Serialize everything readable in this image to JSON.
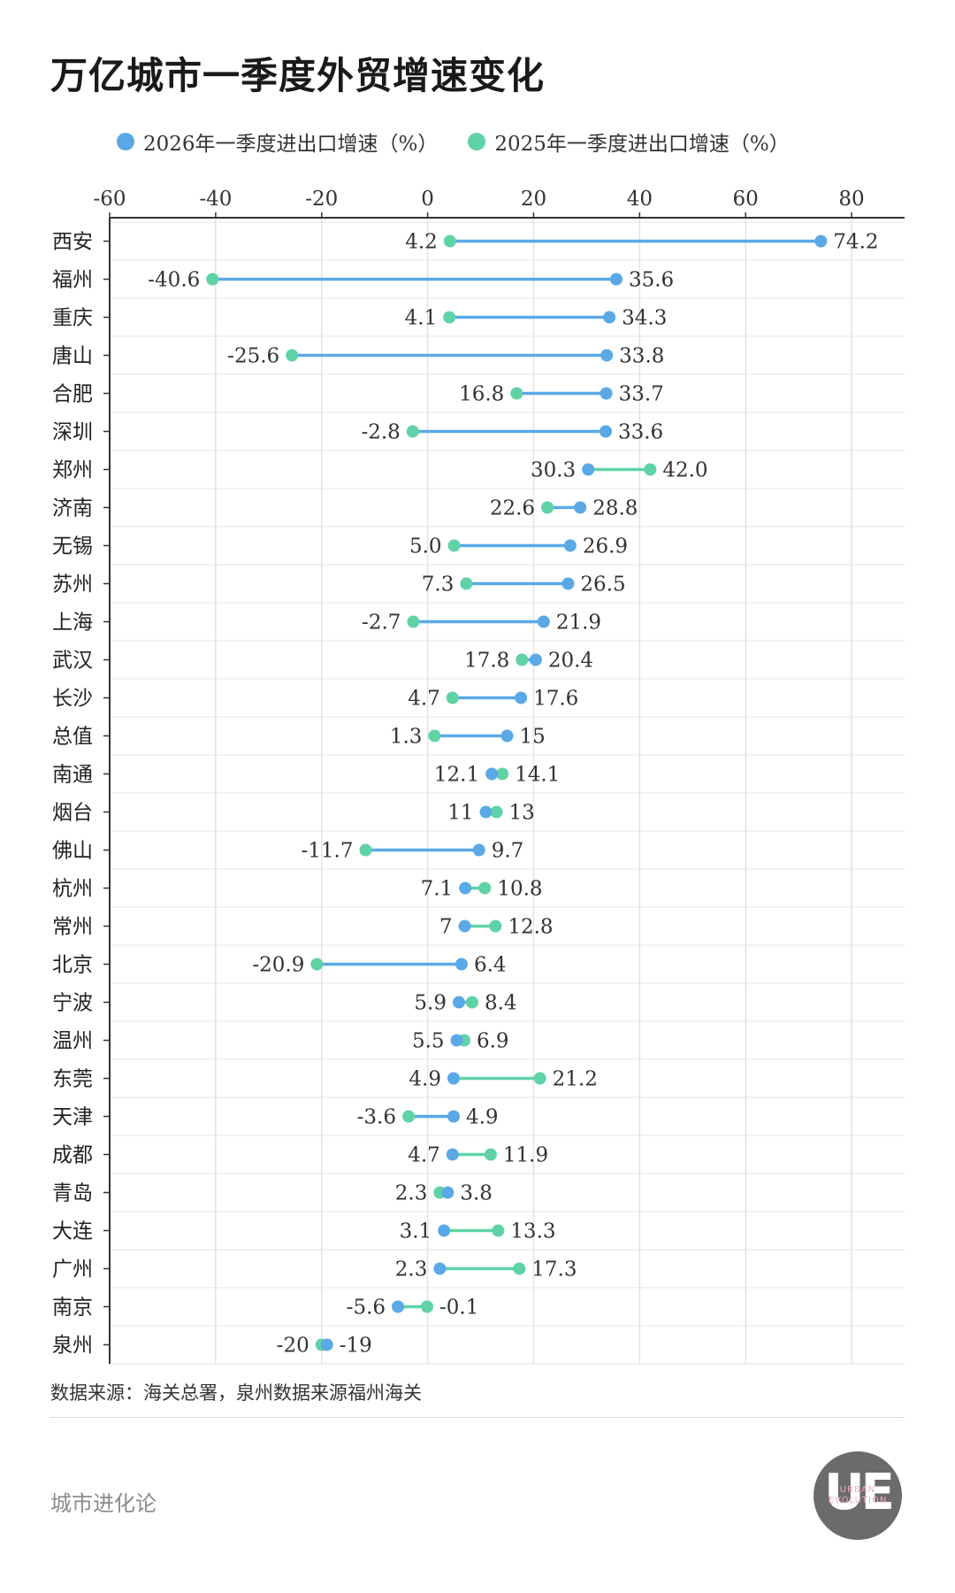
{
  "title": "万亿城市一季度外贸增速变化",
  "legend": [
    {
      "label": "2026年一季度进出口增速（%）",
      "color": "#5aa9e6"
    },
    {
      "label": "2025年一季度进出口增速（%）",
      "color": "#5fd3a6"
    }
  ],
  "chart_data": {
    "type": "dumbbell",
    "title": "万亿城市一季度外贸增速变化",
    "xlim": [
      -60,
      90
    ],
    "xticks": [
      -60,
      -40,
      -20,
      0,
      20,
      40,
      60,
      80
    ],
    "tick_labels": [
      "-60",
      "-40",
      "-20",
      "0",
      "20",
      "40",
      "60",
      "80"
    ],
    "grid": true,
    "series_colors": {
      "2026": "#5aa9e6",
      "2025": "#5fd3a6",
      "connector": "#5aa9e6"
    },
    "rows": [
      {
        "city": "西安",
        "v2026": 74.2,
        "v2025": 4.2,
        "l2026": "74.2",
        "l2025": "4.2",
        "line": "blue"
      },
      {
        "city": "福州",
        "v2026": 35.6,
        "v2025": -40.6,
        "l2026": "35.6",
        "l2025": "-40.6",
        "line": "blue"
      },
      {
        "city": "重庆",
        "v2026": 34.3,
        "v2025": 4.1,
        "l2026": "34.3",
        "l2025": "4.1",
        "line": "blue"
      },
      {
        "city": "唐山",
        "v2026": 33.8,
        "v2025": -25.6,
        "l2026": "33.8",
        "l2025": "-25.6",
        "line": "blue"
      },
      {
        "city": "合肥",
        "v2026": 33.7,
        "v2025": 16.8,
        "l2026": "33.7",
        "l2025": "16.8",
        "line": "blue"
      },
      {
        "city": "深圳",
        "v2026": 33.6,
        "v2025": -2.8,
        "l2026": "33.6",
        "l2025": "-2.8",
        "line": "blue"
      },
      {
        "city": "郑州",
        "v2026": 30.3,
        "v2025": 42.0,
        "l2026": "30.3",
        "l2025": "42.0",
        "line": "green"
      },
      {
        "city": "济南",
        "v2026": 28.8,
        "v2025": 22.6,
        "l2026": "28.8",
        "l2025": "22.6",
        "line": "blue"
      },
      {
        "city": "无锡",
        "v2026": 26.9,
        "v2025": 5.0,
        "l2026": "26.9",
        "l2025": "5.0",
        "line": "blue"
      },
      {
        "city": "苏州",
        "v2026": 26.5,
        "v2025": 7.3,
        "l2026": "26.5",
        "l2025": "7.3",
        "line": "blue"
      },
      {
        "city": "上海",
        "v2026": 21.9,
        "v2025": -2.7,
        "l2026": "21.9",
        "l2025": "-2.7",
        "line": "blue"
      },
      {
        "city": "武汉",
        "v2026": 20.4,
        "v2025": 17.8,
        "l2026": "20.4",
        "l2025": "17.8",
        "line": "blue"
      },
      {
        "city": "长沙",
        "v2026": 17.6,
        "v2025": 4.7,
        "l2026": "17.6",
        "l2025": "4.7",
        "line": "blue"
      },
      {
        "city": "总值",
        "v2026": 15,
        "v2025": 1.3,
        "l2026": "15",
        "l2025": "1.3",
        "line": "blue"
      },
      {
        "city": "南通",
        "v2026": 12.1,
        "v2025": 14.1,
        "l2026": "12.1",
        "l2025": "14.1",
        "line": "green"
      },
      {
        "city": "烟台",
        "v2026": 11,
        "v2025": 13,
        "l2026": "11",
        "l2025": "13",
        "line": "green"
      },
      {
        "city": "佛山",
        "v2026": 9.7,
        "v2025": -11.7,
        "l2026": "9.7",
        "l2025": "-11.7",
        "line": "blue"
      },
      {
        "city": "杭州",
        "v2026": 7.1,
        "v2025": 10.8,
        "l2026": "7.1",
        "l2025": "10.8",
        "line": "green"
      },
      {
        "city": "常州",
        "v2026": 7,
        "v2025": 12.8,
        "l2026": "7",
        "l2025": "12.8",
        "line": "green"
      },
      {
        "city": "北京",
        "v2026": 6.4,
        "v2025": -20.9,
        "l2026": "6.4",
        "l2025": "-20.9",
        "line": "blue"
      },
      {
        "city": "宁波",
        "v2026": 5.9,
        "v2025": 8.4,
        "l2026": "5.9",
        "l2025": "8.4",
        "line": "green"
      },
      {
        "city": "温州",
        "v2026": 5.5,
        "v2025": 6.9,
        "l2026": "5.5",
        "l2025": "6.9",
        "line": "green"
      },
      {
        "city": "东莞",
        "v2026": 4.9,
        "v2025": 21.2,
        "l2026": "4.9",
        "l2025": "21.2",
        "line": "green"
      },
      {
        "city": "天津",
        "v2026": 4.9,
        "v2025": -3.6,
        "l2026": "4.9",
        "l2025": "-3.6",
        "line": "blue"
      },
      {
        "city": "成都",
        "v2026": 4.7,
        "v2025": 11.9,
        "l2026": "4.7",
        "l2025": "11.9",
        "line": "green"
      },
      {
        "city": "青岛",
        "v2026": 3.8,
        "v2025": 2.3,
        "l2026": "3.8",
        "l2025": "2.3",
        "line": "blue"
      },
      {
        "city": "大连",
        "v2026": 3.1,
        "v2025": 13.3,
        "l2026": "3.1",
        "l2025": "13.3",
        "line": "green"
      },
      {
        "city": "广州",
        "v2026": 2.3,
        "v2025": 17.3,
        "l2026": "2.3",
        "l2025": "17.3",
        "line": "green"
      },
      {
        "city": "南京",
        "v2026": -5.6,
        "v2025": -0.1,
        "l2026": "-5.6",
        "l2025": "-0.1",
        "line": "green"
      },
      {
        "city": "泉州",
        "v2026": -19,
        "v2025": -20,
        "l2026": "-19",
        "l2025": "-20",
        "line": "blue"
      }
    ]
  },
  "source": "数据来源：海关总署，泉州数据来源福州海关",
  "brand": "城市进化论",
  "logo": {
    "mark": "UE",
    "line1": "URBAN",
    "line2": "EVOLUTION"
  }
}
